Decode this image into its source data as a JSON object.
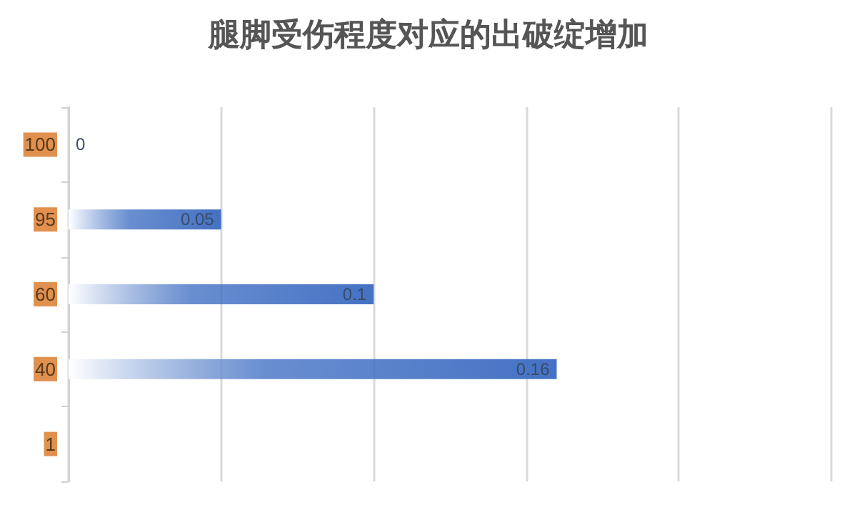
{
  "chart_data": {
    "type": "bar",
    "orientation": "horizontal",
    "title": "腿脚受伤程度对应的出破绽增加",
    "categories": [
      "100",
      "95",
      "60",
      "40",
      "1"
    ],
    "values": [
      0,
      0.05,
      0.1,
      0.16,
      null
    ],
    "color": "#4472c4",
    "data_labels": true,
    "xlim": [
      0,
      0.25
    ],
    "xticks": [
      {
        "value": 0,
        "label": null
      },
      {
        "value": 0.05,
        "label": null
      },
      {
        "value": 0.1,
        "label": null
      },
      {
        "value": 0.15,
        "label": null
      },
      {
        "value": 0.2,
        "label": null
      },
      {
        "value": 0.25,
        "label": null
      }
    ],
    "grid": "x",
    "tick_labels": "y"
  }
}
